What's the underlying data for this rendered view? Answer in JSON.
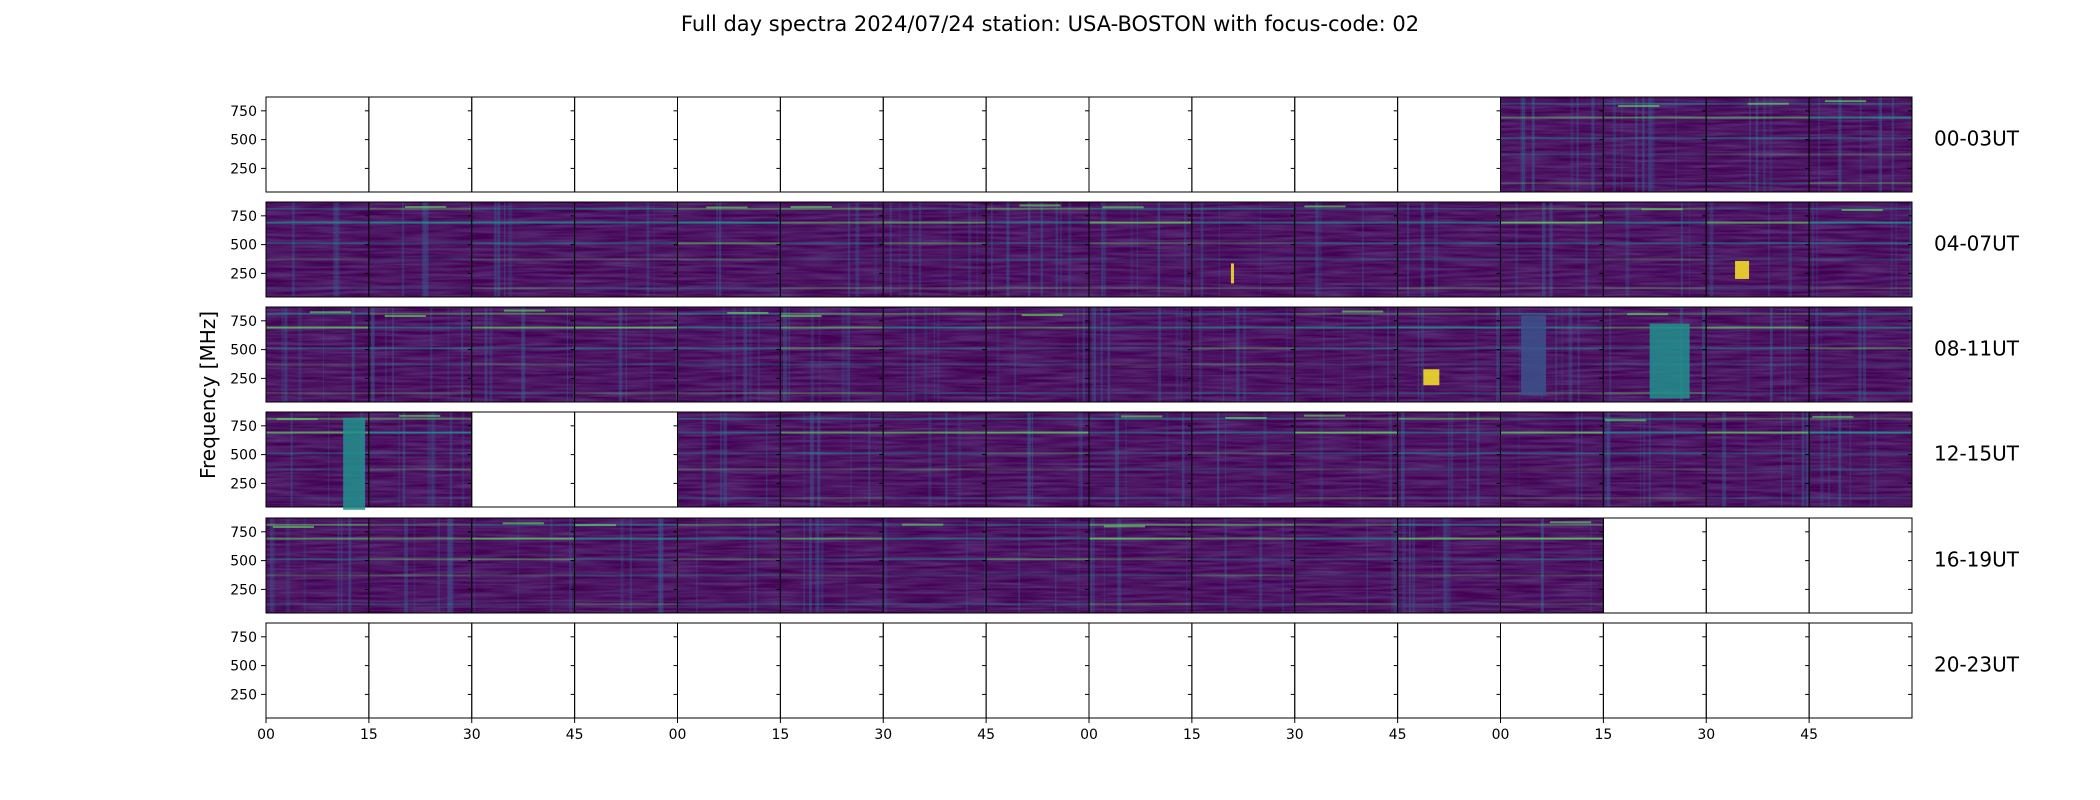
{
  "chart_data": {
    "type": "heatmap",
    "title": "Full day spectra 2024/07/24 station: USA-BOSTON with focus-code: 02",
    "ylabel": "Frequency [MHz]",
    "xlabel": "",
    "y_ticks": [
      "750",
      "500",
      "250"
    ],
    "y_tick_values": [
      750,
      500,
      250
    ],
    "ylim": [
      45,
      870
    ],
    "x_ticks": [
      "00",
      "15",
      "30",
      "45",
      "00",
      "15",
      "30",
      "45",
      "00",
      "15",
      "30",
      "45",
      "00",
      "15",
      "30",
      "45"
    ],
    "colormap": [
      "#440154",
      "#3b528b",
      "#21918c",
      "#5ec962",
      "#fde725"
    ],
    "rows": [
      {
        "label": "00-03UT",
        "data_present": [
          false,
          false,
          false,
          false,
          false,
          false,
          false,
          false,
          false,
          false,
          false,
          false,
          true,
          true,
          true,
          true
        ]
      },
      {
        "label": "04-07UT",
        "data_present": [
          true,
          true,
          true,
          true,
          true,
          true,
          true,
          true,
          true,
          true,
          true,
          true,
          true,
          true,
          true,
          true
        ]
      },
      {
        "label": "08-11UT",
        "data_present": [
          true,
          true,
          true,
          true,
          true,
          true,
          true,
          true,
          true,
          true,
          true,
          true,
          true,
          true,
          true,
          true
        ]
      },
      {
        "label": "12-15UT",
        "data_present": [
          true,
          true,
          false,
          false,
          true,
          true,
          true,
          true,
          true,
          true,
          true,
          true,
          true,
          true,
          true,
          true
        ]
      },
      {
        "label": "16-19UT",
        "data_present": [
          true,
          true,
          true,
          true,
          true,
          true,
          true,
          true,
          true,
          true,
          true,
          true,
          true,
          false,
          false,
          false
        ]
      },
      {
        "label": "20-23UT",
        "data_present": [
          false,
          false,
          false,
          false,
          false,
          false,
          false,
          false,
          false,
          false,
          false,
          false,
          false,
          false,
          false,
          false
        ]
      }
    ]
  }
}
